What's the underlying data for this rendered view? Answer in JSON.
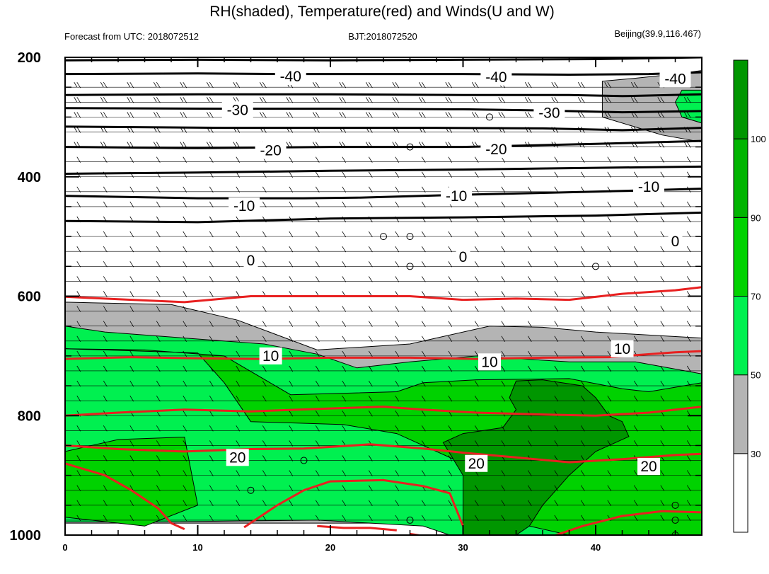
{
  "chart_data": {
    "type": "heatmap",
    "title": "RH(shaded), Temperature(red) and Winds(U and W)",
    "subtitle_left": "Forecast from UTC: 2018072512",
    "subtitle_center": "BJT:2018072520",
    "subtitle_right": "Beijing(39.9,116.467)",
    "xlabel": "",
    "ylabel": "",
    "x_ticks": [
      "0",
      "10",
      "20",
      "30",
      "40"
    ],
    "y_ticks": [
      "200",
      "400",
      "600",
      "800",
      "1000"
    ],
    "xlim": [
      0,
      48
    ],
    "ylim": [
      200,
      1000
    ],
    "y_axis_inverted": true,
    "colorbar": {
      "levels": [
        "30",
        "50",
        "70",
        "90",
        "100"
      ],
      "colors": [
        "#ffffff",
        "#b4b4b4",
        "#00f050",
        "#00d200",
        "#00b400",
        "#009600"
      ]
    },
    "rh_fields": [
      {
        "class": "gray",
        "color": "#b4b4b4",
        "points": [
          [
            0,
            610
          ],
          [
            8,
            614
          ],
          [
            13,
            640
          ],
          [
            19,
            690
          ],
          [
            26,
            680
          ],
          [
            32,
            650
          ],
          [
            36,
            652
          ],
          [
            40,
            660
          ],
          [
            48,
            670
          ],
          [
            48,
            980
          ],
          [
            0,
            980
          ]
        ]
      },
      {
        "class": "gray",
        "color": "#b4b4b4",
        "points": [
          [
            40.5,
            240
          ],
          [
            43,
            235
          ],
          [
            46,
            228
          ],
          [
            48,
            222
          ],
          [
            48,
            342
          ],
          [
            45,
            330
          ],
          [
            40.5,
            300
          ]
        ]
      },
      {
        "class": "light-green",
        "color": "#00f050",
        "points": [
          [
            0,
            650
          ],
          [
            3,
            660
          ],
          [
            9,
            670
          ],
          [
            15,
            680
          ],
          [
            19,
            697
          ],
          [
            22,
            720
          ],
          [
            26,
            710
          ],
          [
            31,
            700
          ],
          [
            38,
            710
          ],
          [
            43,
            710
          ],
          [
            48,
            730
          ],
          [
            48,
            985
          ],
          [
            44,
            1000
          ],
          [
            29,
            1000
          ],
          [
            27,
            985
          ],
          [
            19,
            975
          ],
          [
            7,
            978
          ],
          [
            0,
            978
          ]
        ]
      },
      {
        "class": "light-green",
        "color": "#00f050",
        "points": [
          [
            46.5,
            255
          ],
          [
            48,
            255
          ],
          [
            48,
            310
          ],
          [
            46.5,
            300
          ],
          [
            46,
            275
          ]
        ]
      },
      {
        "class": "green",
        "color": "#00d200",
        "points": [
          [
            0,
            688
          ],
          [
            3,
            690
          ],
          [
            10,
            695
          ],
          [
            12,
            745
          ],
          [
            14,
            810
          ],
          [
            21,
            815
          ],
          [
            25,
            830
          ],
          [
            30,
            880
          ],
          [
            32,
            930
          ],
          [
            35,
            985
          ],
          [
            38,
            1000
          ],
          [
            48,
            1000
          ],
          [
            48,
            745
          ],
          [
            44,
            760
          ],
          [
            42,
            755
          ],
          [
            38,
            738
          ],
          [
            31,
            740
          ],
          [
            27,
            745
          ],
          [
            25,
            760
          ],
          [
            17,
            765
          ],
          [
            12,
            700
          ],
          [
            6,
            690
          ],
          [
            0,
            688
          ]
        ]
      },
      {
        "class": "green",
        "color": "#00d200",
        "points": [
          [
            0,
            860
          ],
          [
            4,
            840
          ],
          [
            9,
            836
          ],
          [
            10,
            950
          ],
          [
            6,
            985
          ],
          [
            0,
            970
          ]
        ]
      },
      {
        "class": "dark-green",
        "color": "#009600",
        "points": [
          [
            34,
            742
          ],
          [
            36,
            740
          ],
          [
            39,
            750
          ],
          [
            40,
            770
          ],
          [
            41,
            800
          ],
          [
            42,
            810
          ],
          [
            42.5,
            835
          ],
          [
            40,
            860
          ],
          [
            38,
            900
          ],
          [
            36,
            950
          ],
          [
            35,
            985
          ],
          [
            34,
            1000
          ],
          [
            30,
            1000
          ],
          [
            30,
            950
          ],
          [
            30,
            900
          ],
          [
            28.5,
            845
          ],
          [
            30,
            830
          ],
          [
            33,
            820
          ],
          [
            34,
            790
          ],
          [
            33.5,
            770
          ]
        ]
      }
    ],
    "temperature_contours": {
      "color": "#e82020",
      "lines": [
        {
          "points": [
            [
              0,
              601
            ],
            [
              5,
              606
            ],
            [
              9,
              610
            ],
            [
              14,
              600
            ],
            [
              20,
              600
            ],
            [
              26,
              600
            ],
            [
              30,
              606
            ],
            [
              34,
              604
            ],
            [
              38,
              606
            ],
            [
              42,
              596
            ],
            [
              46,
              590
            ],
            [
              48,
              585
            ]
          ]
        },
        {
          "points": [
            [
              0,
              705
            ],
            [
              5,
              702
            ],
            [
              10,
              704
            ],
            [
              15,
              705
            ],
            [
              20,
              703
            ],
            [
              26,
              703
            ],
            [
              31,
              705
            ],
            [
              36,
              703
            ],
            [
              41,
              702
            ],
            [
              46,
              694
            ],
            [
              48,
              692
            ]
          ]
        },
        {
          "points": [
            [
              0,
              800
            ],
            [
              4,
              795
            ],
            [
              9,
              790
            ],
            [
              14,
              793
            ],
            [
              20,
              788
            ],
            [
              24,
              785
            ],
            [
              27,
              790
            ],
            [
              31,
              795
            ],
            [
              36,
              798
            ],
            [
              40,
              800
            ],
            [
              44,
              795
            ],
            [
              48,
              785
            ]
          ]
        },
        {
          "points": [
            [
              0,
              850
            ],
            [
              4,
              856
            ],
            [
              9,
              860
            ],
            [
              14,
              856
            ],
            [
              18,
              855
            ],
            [
              23,
              848
            ],
            [
              27,
              855
            ],
            [
              30,
              862
            ],
            [
              34,
              870
            ],
            [
              38,
              878
            ],
            [
              42,
              873
            ],
            [
              46,
              866
            ],
            [
              48,
              864
            ]
          ]
        },
        {
          "points": [
            [
              0,
              880
            ],
            [
              3,
              900
            ],
            [
              5,
              925
            ],
            [
              7,
              955
            ],
            [
              8,
              980
            ],
            [
              9,
              990
            ]
          ]
        },
        {
          "points": [
            [
              13.5,
              987
            ],
            [
              16,
              950
            ],
            [
              18,
              925
            ],
            [
              20,
              910
            ],
            [
              24,
              908
            ],
            [
              27,
              918
            ],
            [
              29,
              930
            ],
            [
              30,
              985
            ]
          ]
        },
        {
          "points": [
            [
              19,
              985
            ],
            [
              21,
              988
            ],
            [
              23,
              988
            ],
            [
              25,
              992
            ]
          ]
        },
        {
          "points": [
            [
              26,
              998
            ],
            [
              28,
              1005
            ]
          ]
        },
        {
          "points": [
            [
              37,
              1000
            ],
            [
              39,
              985
            ],
            [
              42,
              968
            ],
            [
              45,
              960
            ],
            [
              48,
              962
            ]
          ]
        }
      ]
    },
    "black_contours": [
      {
        "points": [
          [
            0,
            205
          ],
          [
            10,
            204
          ],
          [
            20,
            205
          ],
          [
            30,
            204
          ],
          [
            40,
            203
          ],
          [
            48,
            200
          ]
        ]
      },
      {
        "points": [
          [
            0,
            228
          ],
          [
            10,
            227
          ],
          [
            16,
            228
          ],
          [
            22,
            228
          ],
          [
            30,
            228
          ],
          [
            38,
            229
          ],
          [
            44,
            228
          ],
          [
            48,
            225
          ]
        ]
      },
      {
        "points": [
          [
            0,
            263
          ],
          [
            10,
            262
          ],
          [
            20,
            262
          ],
          [
            30,
            263
          ],
          [
            38,
            263
          ],
          [
            42,
            265
          ],
          [
            48,
            262
          ]
        ]
      },
      {
        "points": [
          [
            0,
            285
          ],
          [
            12,
            286
          ],
          [
            20,
            286
          ],
          [
            30,
            287
          ],
          [
            36,
            289
          ],
          [
            42,
            292
          ],
          [
            48,
            290
          ]
        ]
      },
      {
        "points": [
          [
            0,
            316
          ],
          [
            12,
            318
          ],
          [
            20,
            318
          ],
          [
            28,
            318
          ],
          [
            36,
            319
          ],
          [
            42,
            322
          ],
          [
            48,
            318
          ]
        ]
      },
      {
        "points": [
          [
            0,
            350
          ],
          [
            10,
            352
          ],
          [
            20,
            350
          ],
          [
            30,
            350
          ],
          [
            40,
            345
          ],
          [
            48,
            340
          ]
        ]
      },
      {
        "points": [
          [
            0,
            395
          ],
          [
            10,
            393
          ],
          [
            20,
            390
          ],
          [
            30,
            388
          ],
          [
            40,
            385
          ],
          [
            48,
            383
          ]
        ]
      },
      {
        "points": [
          [
            0,
            432
          ],
          [
            10,
            436
          ],
          [
            18,
            436
          ],
          [
            22,
            435
          ],
          [
            30,
            430
          ],
          [
            40,
            425
          ],
          [
            48,
            420
          ]
        ]
      },
      {
        "points": [
          [
            0,
            474
          ],
          [
            10,
            476
          ],
          [
            20,
            470
          ],
          [
            30,
            468
          ],
          [
            40,
            465
          ],
          [
            48,
            460
          ]
        ]
      }
    ],
    "contour_labels": [
      {
        "text": "-40",
        "x": 17,
        "y": 232
      },
      {
        "text": "-40",
        "x": 32.5,
        "y": 233
      },
      {
        "text": "-40",
        "x": 46,
        "y": 236
      },
      {
        "text": "-30",
        "x": 13,
        "y": 288
      },
      {
        "text": "-30",
        "x": 36.5,
        "y": 293
      },
      {
        "text": "-20",
        "x": 15.5,
        "y": 356
      },
      {
        "text": "-20",
        "x": 32.5,
        "y": 354
      },
      {
        "text": "-10",
        "x": 13.5,
        "y": 449
      },
      {
        "text": "-10",
        "x": 29.5,
        "y": 432
      },
      {
        "text": "-10",
        "x": 44,
        "y": 417
      },
      {
        "text": "0",
        "x": 14,
        "y": 540
      },
      {
        "text": "0",
        "x": 30,
        "y": 534
      },
      {
        "text": "0",
        "x": 46,
        "y": 508
      },
      {
        "text": "10",
        "x": 15.5,
        "y": 700
      },
      {
        "text": "10",
        "x": 32,
        "y": 710
      },
      {
        "text": "10",
        "x": 42,
        "y": 688
      },
      {
        "text": "20",
        "x": 13,
        "y": 870
      },
      {
        "text": "20",
        "x": 31,
        "y": 880
      },
      {
        "text": "20",
        "x": 44,
        "y": 885
      }
    ],
    "wind_levels": [
      250,
      275,
      300,
      325,
      350,
      375,
      400,
      425,
      450,
      475,
      500,
      525,
      550,
      575,
      600,
      625,
      650,
      675,
      700,
      725,
      750,
      775,
      800,
      825,
      850,
      875,
      900,
      925,
      950,
      975
    ],
    "wind_stations": [
      1,
      3,
      5,
      7,
      9,
      11,
      13,
      15,
      17,
      19,
      21,
      23,
      25,
      27,
      29,
      31,
      33,
      35,
      37,
      39,
      41,
      43,
      45,
      47
    ],
    "calm_points": [
      [
        32,
        300
      ],
      [
        26,
        350
      ],
      [
        24,
        500
      ],
      [
        26,
        500
      ],
      [
        26,
        550
      ],
      [
        40,
        550
      ],
      [
        18,
        875
      ],
      [
        14,
        925
      ],
      [
        26,
        975
      ],
      [
        46,
        950
      ],
      [
        46,
        975
      ],
      [
        46,
        1000
      ]
    ]
  }
}
